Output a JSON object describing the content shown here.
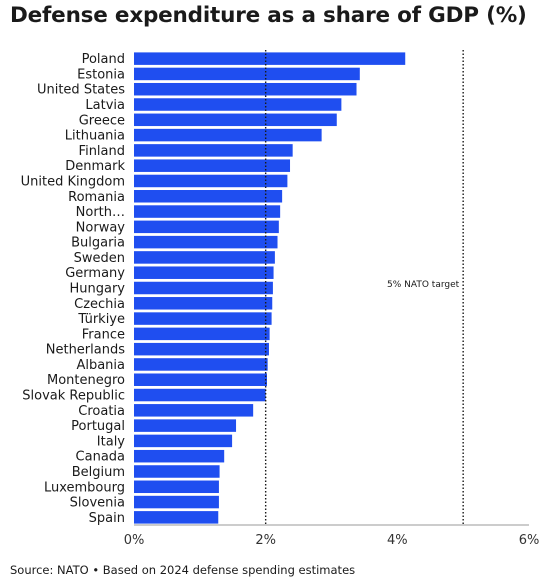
{
  "title": "Defense expenditure as a share of GDP (%)",
  "source": "Source: NATO • Based on 2024 defense spending estimates",
  "colors": {
    "bar": "#1f4ef0",
    "reference": "#1a1a1a",
    "axis": "#999999"
  },
  "chart_data": {
    "type": "bar",
    "orientation": "horizontal",
    "title": "Defense expenditure as a share of GDP (%)",
    "xlabel": "",
    "ylabel": "",
    "xlim": [
      0,
      6
    ],
    "x_ticks": [
      0,
      2,
      4,
      6
    ],
    "x_tick_labels": [
      "0%",
      "2%",
      "4%",
      "6%"
    ],
    "grid": false,
    "categories": [
      "Poland",
      "Estonia",
      "United States",
      "Latvia",
      "Greece",
      "Lithuania",
      "Finland",
      "Denmark",
      "United Kingdom",
      "Romania",
      "North…",
      "Norway",
      "Bulgaria",
      "Sweden",
      "Germany",
      "Hungary",
      "Czechia",
      "Türkiye",
      "France",
      "Netherlands",
      "Albania",
      "Montenegro",
      "Slovak Republic",
      "Croatia",
      "Portugal",
      "Italy",
      "Canada",
      "Belgium",
      "Luxembourg",
      "Slovenia",
      "Spain"
    ],
    "values": [
      4.12,
      3.43,
      3.38,
      3.15,
      3.08,
      2.85,
      2.41,
      2.37,
      2.33,
      2.25,
      2.22,
      2.2,
      2.18,
      2.14,
      2.12,
      2.11,
      2.1,
      2.09,
      2.06,
      2.05,
      2.03,
      2.02,
      2.0,
      1.81,
      1.55,
      1.49,
      1.37,
      1.3,
      1.29,
      1.29,
      1.28
    ],
    "reference_lines": [
      {
        "x": 2,
        "label": "",
        "style": "dotted"
      },
      {
        "x": 5,
        "label": "5% NATO target",
        "style": "dotted"
      }
    ]
  }
}
